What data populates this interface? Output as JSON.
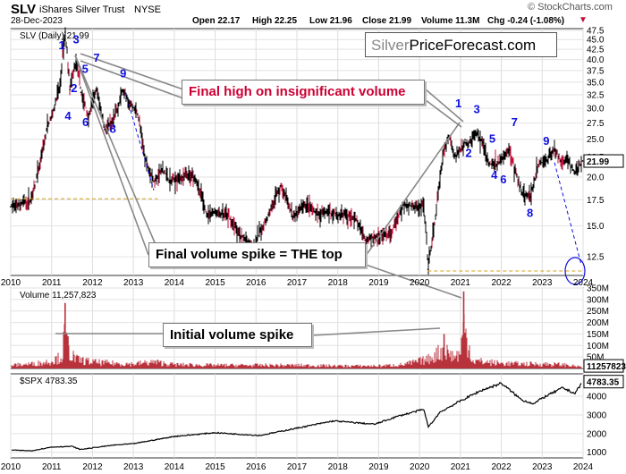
{
  "header": {
    "symbol": "SLV",
    "name": "iShares Silver Trust",
    "exchange": "NYSE",
    "date": "28-Dec-2023",
    "open": "Open 22.17",
    "high": "High 22.25",
    "low": "Low 21.96",
    "close": "Close 21.99",
    "volume": "Volume 11.3M",
    "chg": "Chg -0.24 (-1.08%)",
    "copyright": "© StockCharts.com"
  },
  "watermark": {
    "part1": "Silver",
    "part2": "PriceForecast.com"
  },
  "callouts": {
    "final_high": "Final high on insignificant volume",
    "final_volume": "Final volume spike = THE top",
    "initial_volume": "Initial volume spike"
  },
  "colors": {
    "price_bar": "#000000",
    "price_down": "#c0103a",
    "volume_bar": "#b8323c",
    "wave": "#1010e0",
    "support_line": "#d4a017",
    "callout_red": "#cc0033",
    "spx_line": "#000000"
  },
  "chart_data": [
    {
      "type": "line",
      "panel": "price",
      "title": "SLV (Daily) 21.99",
      "last_value_label": "21.99",
      "scale": "log",
      "ylim": [
        11.2,
        48
      ],
      "y_ticks": [
        12.5,
        15.0,
        17.5,
        20.0,
        22.5,
        25.0,
        27.5,
        30.0,
        32.5,
        35.0,
        37.5,
        40.0,
        42.5,
        45.0,
        47.5
      ],
      "x_ticks": [
        "2010",
        "2011",
        "2012",
        "2013",
        "2014",
        "2015",
        "2016",
        "2017",
        "2018",
        "2019",
        "2020",
        "2021",
        "2022",
        "2023",
        "2024"
      ],
      "x": [
        2010.0,
        2010.3,
        2010.5,
        2010.7,
        2010.9,
        2011.0,
        2011.2,
        2011.33,
        2011.45,
        2011.6,
        2011.72,
        2011.9,
        2012.1,
        2012.3,
        2012.5,
        2012.75,
        2012.9,
        2013.1,
        2013.3,
        2013.5,
        2013.7,
        2013.9,
        2014.2,
        2014.5,
        2014.8,
        2015.0,
        2015.3,
        2015.6,
        2015.95,
        2016.3,
        2016.6,
        2016.9,
        2017.2,
        2017.5,
        2017.8,
        2018.1,
        2018.4,
        2018.7,
        2019.0,
        2019.3,
        2019.6,
        2019.9,
        2020.1,
        2020.21,
        2020.4,
        2020.6,
        2020.72,
        2020.85,
        2021.0,
        2021.1,
        2021.25,
        2021.4,
        2021.55,
        2021.7,
        2021.9,
        2022.05,
        2022.2,
        2022.35,
        2022.5,
        2022.72,
        2022.9,
        2023.1,
        2023.3,
        2023.45,
        2023.6,
        2023.8,
        2023.99
      ],
      "values": [
        16.8,
        17.2,
        17.5,
        21.0,
        27.0,
        28.5,
        34.0,
        47.0,
        33.5,
        39.5,
        33.0,
        28.5,
        33.5,
        26.5,
        27.5,
        33.5,
        31.0,
        29.0,
        22.0,
        19.5,
        21.0,
        19.5,
        20.0,
        20.0,
        16.0,
        16.3,
        16.0,
        14.2,
        13.3,
        16.0,
        19.0,
        15.8,
        17.0,
        16.0,
        16.2,
        16.0,
        15.8,
        13.8,
        14.3,
        14.2,
        17.0,
        16.8,
        17.0,
        11.6,
        16.0,
        23.5,
        25.5,
        22.5,
        23.5,
        24.5,
        24.5,
        26.0,
        24.5,
        21.5,
        21.5,
        22.5,
        23.5,
        20.5,
        18.3,
        17.8,
        21.5,
        22.0,
        23.5,
        22.0,
        22.0,
        20.5,
        21.99
      ]
    },
    {
      "type": "bar",
      "panel": "volume",
      "title": "Volume 11,257,823",
      "last_value_label": "11257823",
      "ylim": [
        0,
        350
      ],
      "y_ticks": [
        "50M",
        "100M",
        "150M",
        "200M",
        "250M",
        "300M",
        "350M"
      ],
      "x": [
        2010.0,
        2010.5,
        2010.8,
        2011.0,
        2011.25,
        2011.33,
        2011.4,
        2011.6,
        2012.0,
        2012.5,
        2013.0,
        2013.5,
        2014.0,
        2015.0,
        2016.0,
        2017.0,
        2018.0,
        2019.0,
        2019.6,
        2020.2,
        2020.6,
        2020.85,
        2021.0,
        2021.08,
        2021.3,
        2022.0,
        2022.5,
        2023.0,
        2023.5,
        2023.99
      ],
      "values": [
        25,
        35,
        45,
        60,
        90,
        285,
        140,
        70,
        50,
        40,
        35,
        50,
        30,
        25,
        25,
        25,
        20,
        20,
        30,
        70,
        150,
        90,
        120,
        335,
        60,
        40,
        35,
        35,
        30,
        11.26
      ]
    },
    {
      "type": "line",
      "panel": "spx",
      "title": "$SPX 4783.35",
      "last_value_label": "4783.35",
      "ylim": [
        700,
        5200
      ],
      "y_ticks": [
        1000,
        2000,
        3000,
        4000
      ],
      "x": [
        2010.0,
        2010.5,
        2011.0,
        2011.5,
        2011.7,
        2012.5,
        2013.0,
        2014.0,
        2015.0,
        2015.7,
        2016.1,
        2016.9,
        2017.9,
        2018.9,
        2019.5,
        2020.1,
        2020.22,
        2020.5,
        2021.0,
        2021.5,
        2022.0,
        2022.5,
        2022.8,
        2023.0,
        2023.5,
        2023.8,
        2023.99
      ],
      "values": [
        1120,
        1080,
        1280,
        1320,
        1150,
        1380,
        1460,
        1850,
        2050,
        1950,
        1900,
        2250,
        2680,
        2500,
        2950,
        3300,
        2350,
        3150,
        3750,
        4300,
        4700,
        3800,
        3600,
        3900,
        4450,
        4150,
        4783
      ]
    }
  ],
  "annotations": {
    "waves_2011": [
      "1",
      "2",
      "3",
      "4",
      "5",
      "6",
      "7",
      "8",
      "9"
    ],
    "waves_2020": [
      "1",
      "2",
      "3",
      "4",
      "5",
      "6",
      "7",
      "8",
      "9"
    ]
  }
}
